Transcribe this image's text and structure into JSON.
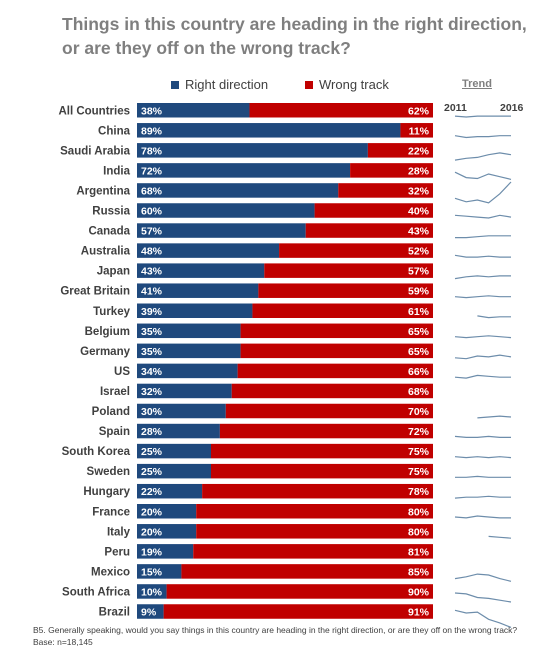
{
  "title_line1": "Things in this country are heading in the right direction,",
  "title_line2": "or are they off on the wrong track?",
  "legend": {
    "right": "Right direction",
    "wrong": "Wrong track"
  },
  "trend": {
    "header": "Trend",
    "start_year": "2011",
    "end_year": "2016"
  },
  "footnote": "B5. Generally speaking, would you say things in this country are heading in the right direction, or are they off on the wrong track? Base: n=18,145",
  "colors": {
    "right": "#1f497d",
    "wrong": "#c00000",
    "trend": "#6d8dab"
  },
  "chart_data": {
    "type": "bar",
    "orientation": "horizontal",
    "stacked": true,
    "categories": [
      "All Countries",
      "China",
      "Saudi Arabia",
      "India",
      "Argentina",
      "Russia",
      "Canada",
      "Australia",
      "Japan",
      "Great Britain",
      "Turkey",
      "Belgium",
      "Germany",
      "US",
      "Israel",
      "Poland",
      "Spain",
      "South Korea",
      "Sweden",
      "Hungary",
      "France",
      "Italy",
      "Peru",
      "Mexico",
      "South Africa",
      "Brazil"
    ],
    "series": [
      {
        "name": "Right direction",
        "values": [
          38,
          89,
          78,
          72,
          68,
          60,
          57,
          48,
          43,
          41,
          39,
          35,
          35,
          34,
          32,
          30,
          28,
          25,
          25,
          22,
          20,
          20,
          19,
          15,
          10,
          9
        ]
      },
      {
        "name": "Wrong track",
        "values": [
          62,
          11,
          22,
          28,
          32,
          40,
          43,
          52,
          57,
          59,
          61,
          65,
          65,
          66,
          68,
          70,
          72,
          75,
          75,
          78,
          80,
          80,
          81,
          85,
          90,
          91
        ]
      }
    ],
    "labels_right": [
      "38%",
      "89%",
      "78%",
      "72%",
      "68%",
      "60%",
      "57%",
      "48%",
      "43%",
      "41%",
      "39%",
      "35%",
      "35%",
      "34%",
      "32%",
      "30%",
      "28%",
      "25%",
      "25%",
      "22%",
      "20%",
      "20%",
      "19%",
      "15%",
      "10%",
      "9%"
    ],
    "labels_wrong": [
      "62%",
      "11%",
      "22%",
      "28%",
      "32%",
      "40%",
      "43%",
      "52%",
      "57%",
      "59%",
      "61%",
      "65%",
      "65%",
      "66%",
      "68%",
      "70%",
      "72%",
      "75%",
      "75%",
      "78%",
      "80%",
      "80%",
      "81%",
      "85%",
      "90%",
      "91%"
    ],
    "xlim": [
      0,
      100
    ],
    "trend_right_direction": [
      [
        38,
        37,
        38,
        38,
        38,
        38
      ],
      [
        89,
        87,
        88,
        88,
        89,
        89
      ],
      [
        72,
        74,
        75,
        78,
        80,
        78
      ],
      [
        80,
        74,
        73,
        78,
        75,
        72
      ],
      [
        50,
        46,
        48,
        45,
        55,
        68
      ],
      [
        62,
        61,
        60,
        59,
        62,
        60
      ],
      [
        55,
        55,
        56,
        57,
        57,
        57
      ],
      [
        50,
        48,
        48,
        49,
        48,
        48
      ],
      [
        40,
        42,
        43,
        42,
        43,
        43
      ],
      [
        41,
        40,
        41,
        42,
        41,
        41
      ],
      [
        null,
        null,
        40,
        38,
        39,
        39
      ],
      [
        36,
        35,
        36,
        37,
        36,
        35
      ],
      [
        34,
        33,
        36,
        35,
        37,
        35
      ],
      [
        34,
        33,
        36,
        35,
        34,
        34
      ],
      null,
      [
        null,
        null,
        29,
        30,
        31,
        30
      ],
      [
        29,
        28,
        28,
        29,
        28,
        28
      ],
      [
        26,
        25,
        26,
        25,
        26,
        25
      ],
      [
        25,
        25,
        26,
        25,
        25,
        25
      ],
      [
        21,
        22,
        22,
        23,
        22,
        22
      ],
      [
        21,
        20,
        22,
        21,
        20,
        20
      ],
      [
        null,
        null,
        null,
        22,
        21,
        20
      ],
      null,
      [
        18,
        20,
        23,
        22,
        18,
        15
      ],
      [
        20,
        19,
        15,
        14,
        12,
        10
      ],
      [
        28,
        25,
        26,
        18,
        14,
        9
      ]
    ]
  }
}
